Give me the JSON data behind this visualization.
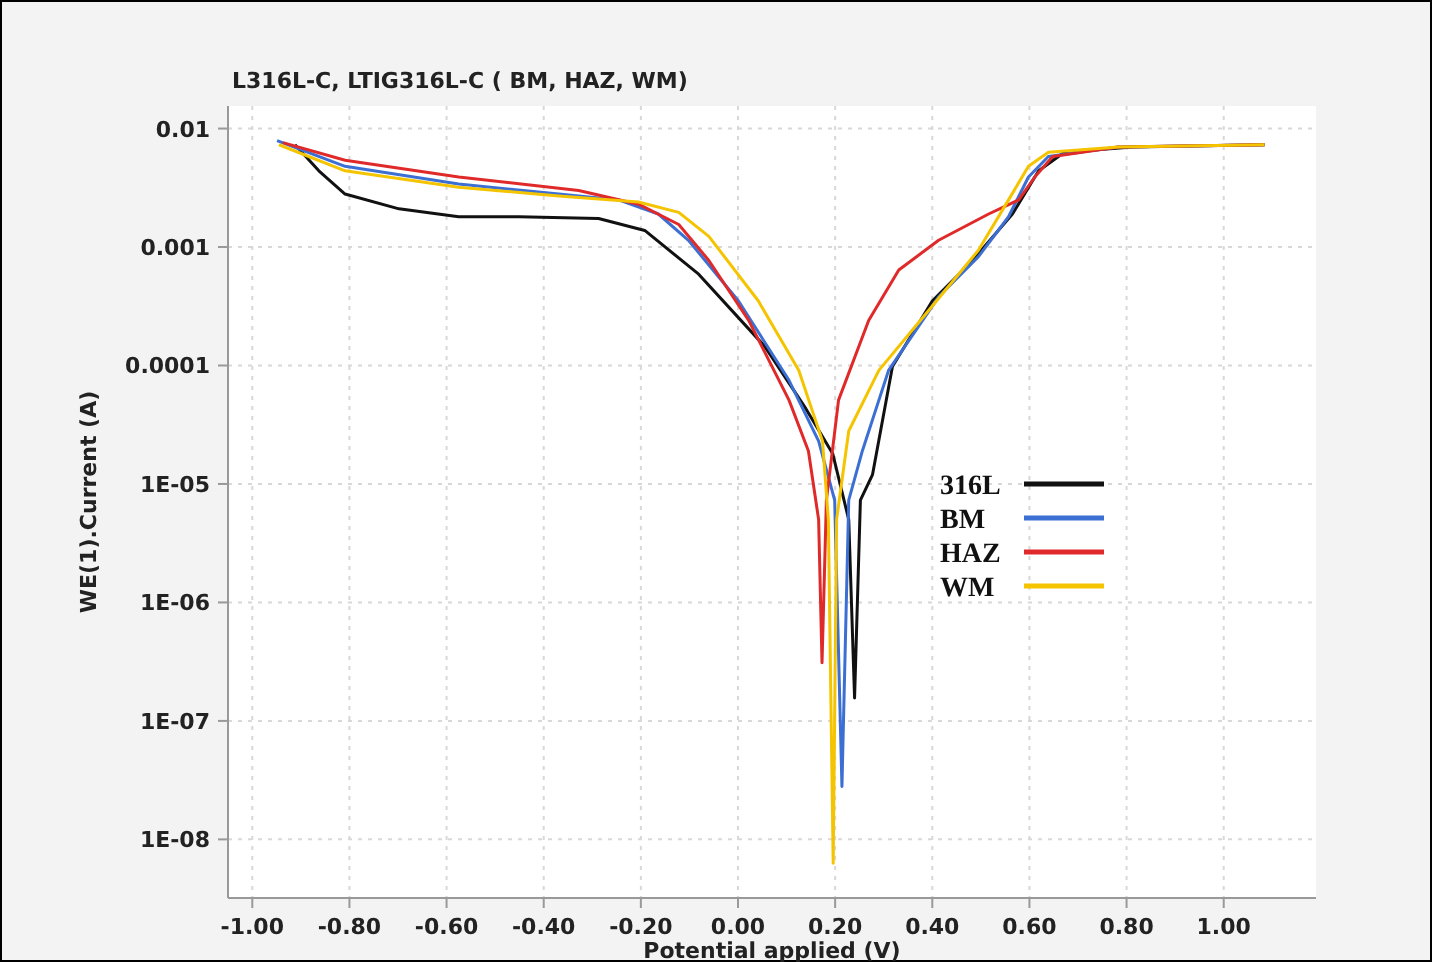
{
  "chart_data": {
    "type": "line",
    "title": "L316L-C, LTIG316L-C ( BM, HAZ, WM)",
    "xlabel": "Potential applied (V)",
    "ylabel": "WE(1).Current (A)",
    "log": "y",
    "grid": true,
    "legend": "right",
    "line_style": "solid",
    "marker": "none",
    "xlim": [
      -1.05,
      1.19
    ],
    "xticks": [
      {
        "value": -1,
        "label": "-1.00"
      },
      {
        "value": -0.8,
        "label": "-0.80"
      },
      {
        "value": -0.6,
        "label": "-0.60"
      },
      {
        "value": -0.4,
        "label": "-0.40"
      },
      {
        "value": -0.2,
        "label": "-0.20"
      },
      {
        "value": 0,
        "label": "0.00"
      },
      {
        "value": 0.2,
        "label": "0.20"
      },
      {
        "value": 0.4,
        "label": "0.40"
      },
      {
        "value": 0.6,
        "label": "0.60"
      },
      {
        "value": 0.8,
        "label": "0.80"
      },
      {
        "value": 1,
        "label": "1.00"
      }
    ],
    "ylim": [
      3.2e-09,
      0.0155
    ],
    "yticks": [
      {
        "value": 1e-08,
        "label": "1E-08"
      },
      {
        "value": 1e-07,
        "label": "1E-07"
      },
      {
        "value": 1e-06,
        "label": "1E-06"
      },
      {
        "value": 1e-05,
        "label": "1E-05"
      },
      {
        "value": 0.0001,
        "label": "0.0001"
      },
      {
        "value": 0.001,
        "label": "0.001"
      },
      {
        "value": 0.01,
        "label": "0.01"
      }
    ],
    "series": [
      {
        "name": "316L",
        "color": "#111111",
        "x": [
          -0.912,
          -0.863,
          -0.809,
          -0.698,
          -0.575,
          -0.451,
          -0.287,
          -0.192,
          -0.081,
          0.055,
          0.137,
          0.195,
          0.228,
          0.24,
          0.252,
          0.277,
          0.318,
          0.4,
          0.483,
          0.565,
          0.619,
          0.672,
          0.812,
          1.084
        ],
        "values": [
          0.0073,
          0.0044,
          0.0028,
          0.0021,
          0.0018,
          0.0018,
          0.00174,
          0.00138,
          0.00059,
          0.000145,
          4.5e-05,
          1.8e-05,
          5e-06,
          1.56e-07,
          7.3e-06,
          1.2e-05,
          9.8e-05,
          0.00035,
          0.00077,
          0.0019,
          0.0044,
          0.0063,
          0.007,
          0.0073
        ]
      },
      {
        "name": "BM",
        "color": "#3b6fd4",
        "x": [
          -0.949,
          -0.809,
          -0.575,
          -0.369,
          -0.246,
          -0.164,
          -0.102,
          0.001,
          0.105,
          0.166,
          0.199,
          0.214,
          0.228,
          0.256,
          0.31,
          0.413,
          0.495,
          0.557,
          0.598,
          0.639,
          0.783,
          1.084
        ],
        "values": [
          0.0079,
          0.0048,
          0.0034,
          0.0028,
          0.0025,
          0.0019,
          0.00114,
          0.00035,
          7.5e-05,
          2.3e-05,
          7.3e-06,
          2.8e-08,
          7.3e-06,
          1.9e-05,
          9.1e-05,
          0.00038,
          0.00083,
          0.0018,
          0.0039,
          0.0058,
          0.007,
          0.0073
        ]
      },
      {
        "name": "HAZ",
        "color": "#e02a2a",
        "x": [
          -0.937,
          -0.809,
          -0.575,
          -0.328,
          -0.205,
          -0.122,
          -0.06,
          0.022,
          0.105,
          0.145,
          0.166,
          0.173,
          0.182,
          0.207,
          0.269,
          0.331,
          0.413,
          0.516,
          0.578,
          0.611,
          0.648,
          0.783,
          1.084
        ],
        "values": [
          0.0076,
          0.0054,
          0.0039,
          0.003,
          0.0023,
          0.00155,
          0.00077,
          0.00024,
          5.1e-05,
          1.9e-05,
          5e-06,
          3.1e-07,
          7.3e-06,
          5.1e-05,
          0.00024,
          0.00064,
          0.00114,
          0.0019,
          0.0025,
          0.0039,
          0.0058,
          0.007,
          0.0073
        ]
      },
      {
        "name": "WM",
        "color": "#f5c400",
        "x": [
          -0.945,
          -0.809,
          -0.575,
          -0.369,
          -0.205,
          -0.122,
          -0.06,
          0.042,
          0.125,
          0.174,
          0.186,
          0.196,
          0.203,
          0.228,
          0.29,
          0.392,
          0.495,
          0.557,
          0.598,
          0.639,
          0.783,
          1.084
        ],
        "values": [
          0.0073,
          0.0044,
          0.0032,
          0.0027,
          0.0024,
          0.00196,
          0.00123,
          0.00035,
          9.1e-05,
          2.3e-05,
          5e-06,
          6.3e-09,
          5e-06,
          2.8e-05,
          9.1e-05,
          0.00029,
          0.00094,
          0.0025,
          0.0048,
          0.0063,
          0.007,
          0.0073
        ]
      }
    ]
  }
}
